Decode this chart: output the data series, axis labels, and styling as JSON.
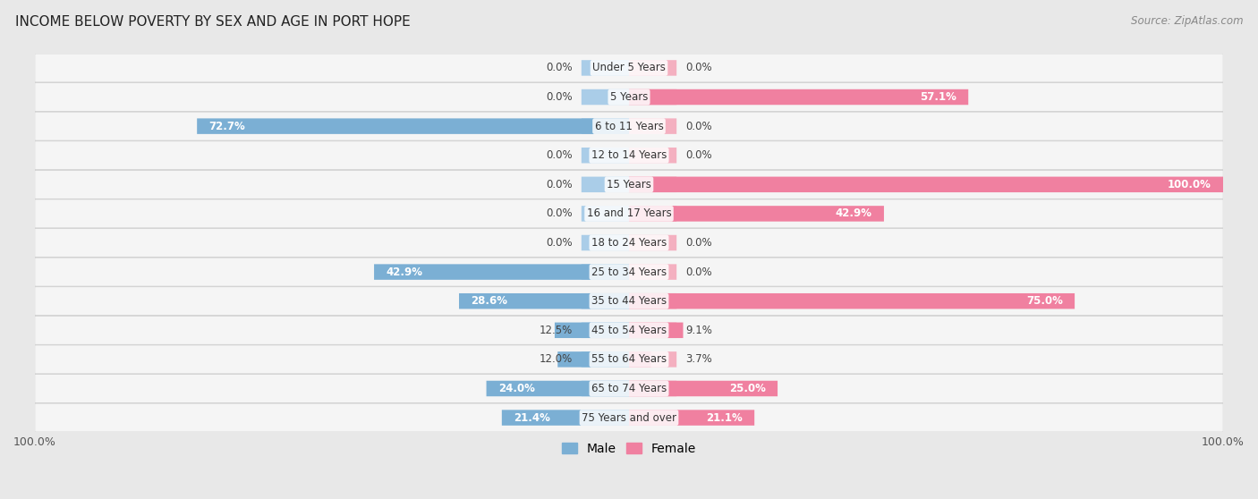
{
  "title": "INCOME BELOW POVERTY BY SEX AND AGE IN PORT HOPE",
  "source": "Source: ZipAtlas.com",
  "categories": [
    "Under 5 Years",
    "5 Years",
    "6 to 11 Years",
    "12 to 14 Years",
    "15 Years",
    "16 and 17 Years",
    "18 to 24 Years",
    "25 to 34 Years",
    "35 to 44 Years",
    "45 to 54 Years",
    "55 to 64 Years",
    "65 to 74 Years",
    "75 Years and over"
  ],
  "male": [
    0.0,
    0.0,
    72.7,
    0.0,
    0.0,
    0.0,
    0.0,
    42.9,
    28.6,
    12.5,
    12.0,
    24.0,
    21.4
  ],
  "female": [
    0.0,
    57.1,
    0.0,
    0.0,
    100.0,
    42.9,
    0.0,
    0.0,
    75.0,
    9.1,
    3.7,
    25.0,
    21.1
  ],
  "male_color": "#7bafd4",
  "female_color": "#f080a0",
  "male_color_light": "#aacde8",
  "female_color_light": "#f4b0c0",
  "male_label": "Male",
  "female_label": "Female",
  "bar_height": 0.52,
  "max_val": 100.0,
  "bg_color": "#e8e8e8",
  "row_color": "#f5f5f5",
  "title_fontsize": 11,
  "label_fontsize": 8.5,
  "tick_fontsize": 9,
  "source_fontsize": 8.5
}
